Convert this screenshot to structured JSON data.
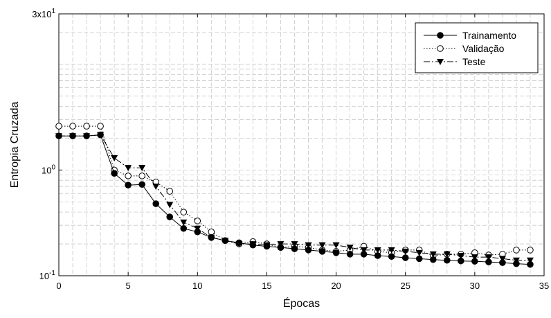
{
  "chart_data": {
    "type": "line",
    "xlabel": "Épocas",
    "ylabel": "Entropia Cruzada",
    "xlim": [
      0,
      35
    ],
    "ylim": [
      0.1,
      30
    ],
    "yscale": "log",
    "grid": true,
    "legend_position": "top-right",
    "x_ticks": [
      "0",
      "5",
      "10",
      "15",
      "20",
      "25",
      "30",
      "35"
    ],
    "y_ticks": [
      {
        "value": 0.1,
        "base": "10",
        "exp": "-1"
      },
      {
        "value": 1,
        "base": "10",
        "exp": "0"
      },
      {
        "value": 30,
        "base": "3x10",
        "exp": "1"
      }
    ],
    "x": [
      0,
      1,
      2,
      3,
      4,
      5,
      6,
      7,
      8,
      9,
      10,
      11,
      12,
      13,
      14,
      15,
      16,
      17,
      18,
      19,
      20,
      21,
      22,
      23,
      24,
      25,
      26,
      27,
      28,
      29,
      30,
      31,
      32,
      33,
      34
    ],
    "series": [
      {
        "name": "Trainamento",
        "marker": "filled-circle",
        "line": "solid",
        "values": [
          2.1,
          2.1,
          2.1,
          2.15,
          0.93,
          0.72,
          0.73,
          0.48,
          0.36,
          0.28,
          0.26,
          0.23,
          0.215,
          0.205,
          0.195,
          0.19,
          0.185,
          0.18,
          0.175,
          0.17,
          0.165,
          0.16,
          0.16,
          0.155,
          0.152,
          0.148,
          0.145,
          0.142,
          0.14,
          0.138,
          0.137,
          0.135,
          0.133,
          0.13,
          0.128
        ]
      },
      {
        "name": "Validação",
        "marker": "open-circle",
        "line": "dotted",
        "values": [
          2.6,
          2.6,
          2.6,
          2.6,
          1.0,
          0.88,
          0.88,
          0.77,
          0.63,
          0.4,
          0.33,
          0.26,
          0.215,
          0.2,
          0.21,
          0.2,
          0.185,
          0.19,
          0.185,
          0.175,
          0.17,
          0.175,
          0.19,
          0.17,
          0.165,
          0.175,
          0.175,
          0.155,
          0.16,
          0.16,
          0.165,
          0.157,
          0.16,
          0.175,
          0.175
        ]
      },
      {
        "name": "Teste",
        "marker": "filled-triangle-down",
        "line": "dashed",
        "values": [
          2.1,
          2.1,
          2.1,
          2.15,
          1.3,
          1.05,
          1.05,
          0.7,
          0.47,
          0.32,
          0.28,
          0.23,
          0.215,
          0.2,
          0.2,
          0.195,
          0.2,
          0.2,
          0.195,
          0.195,
          0.195,
          0.185,
          0.175,
          0.175,
          0.175,
          0.17,
          0.165,
          0.16,
          0.16,
          0.155,
          0.15,
          0.15,
          0.145,
          0.14,
          0.14
        ]
      }
    ]
  }
}
